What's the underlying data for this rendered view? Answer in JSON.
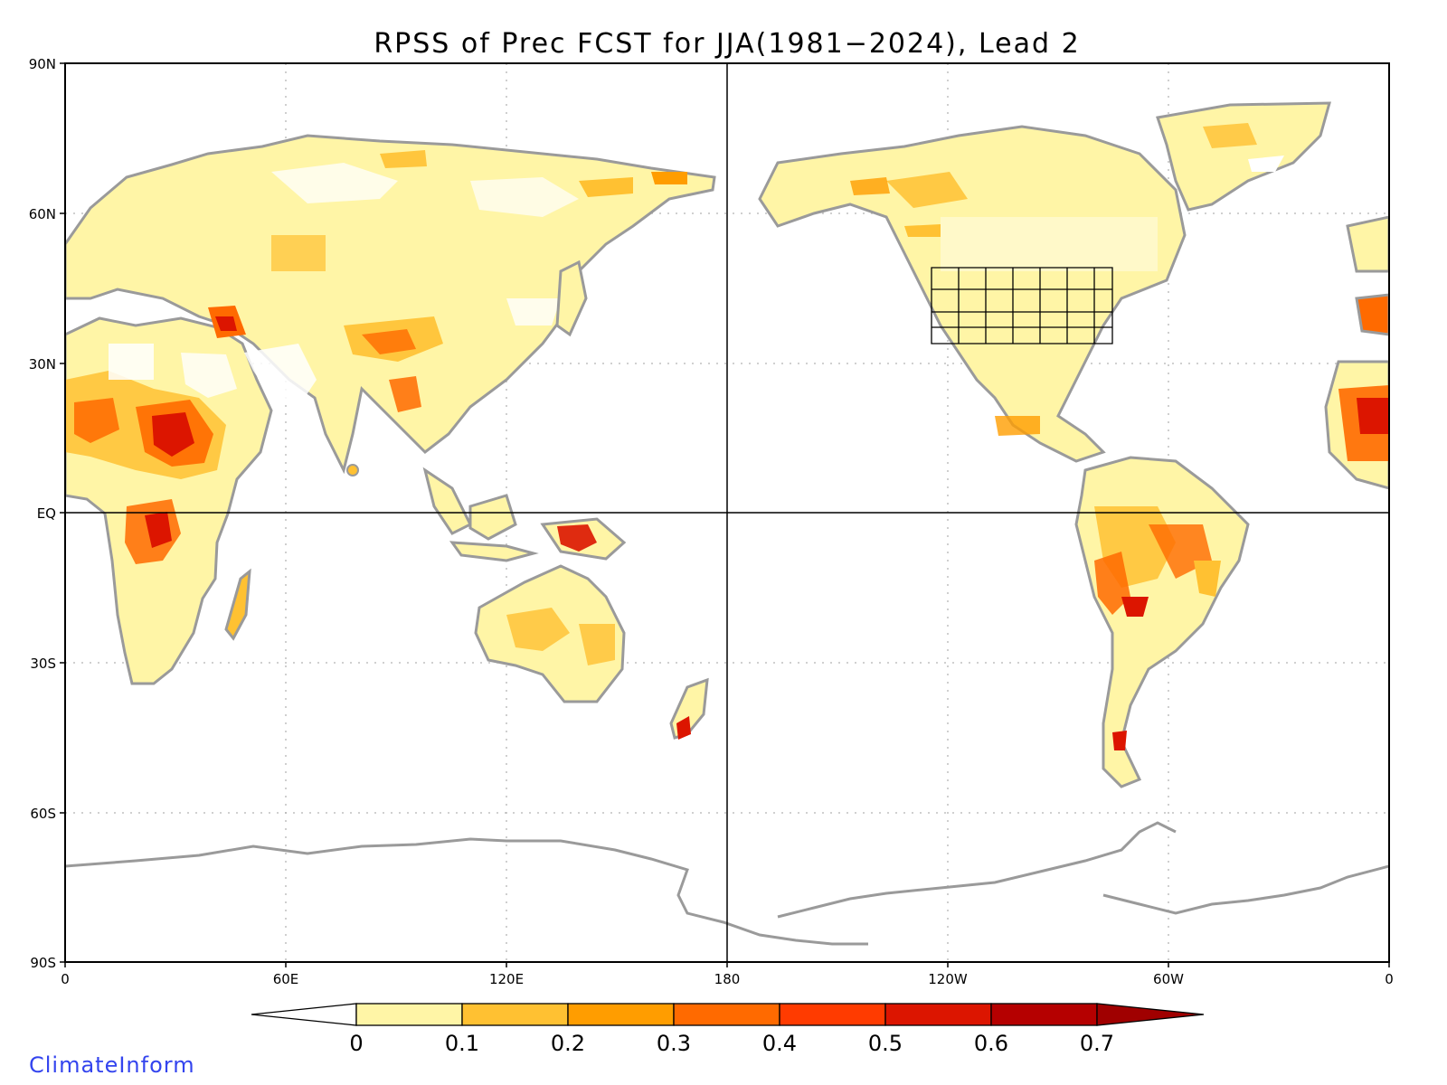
{
  "map": {
    "title": "RPSS of Prec FCST for JJA(1981−2024), Lead 2",
    "lat_ticks": [
      "90N",
      "60N",
      "30N",
      "EQ",
      "30S",
      "60S",
      "90S"
    ],
    "lon_ticks": [
      "0",
      "60E",
      "120E",
      "180",
      "120W",
      "60W",
      "0"
    ],
    "projection": "equirectangular, centered 180",
    "grid": "dotted",
    "colors": {
      "land_outline": "#9a9a9a",
      "lakes_states": "#000000",
      "background": "#ffffff"
    }
  },
  "colorbar": {
    "boundaries": [
      "0",
      "0.1",
      "0.2",
      "0.3",
      "0.4",
      "0.5",
      "0.6",
      "0.7"
    ],
    "bin_colors": [
      "#ffffff",
      "#fff5a6",
      "#ffc132",
      "#ff9d00",
      "#ff6a00",
      "#ff3b00",
      "#dc1500",
      "#b50000",
      "#a00000"
    ],
    "extend": "both"
  },
  "credit": "ClimateInform"
}
